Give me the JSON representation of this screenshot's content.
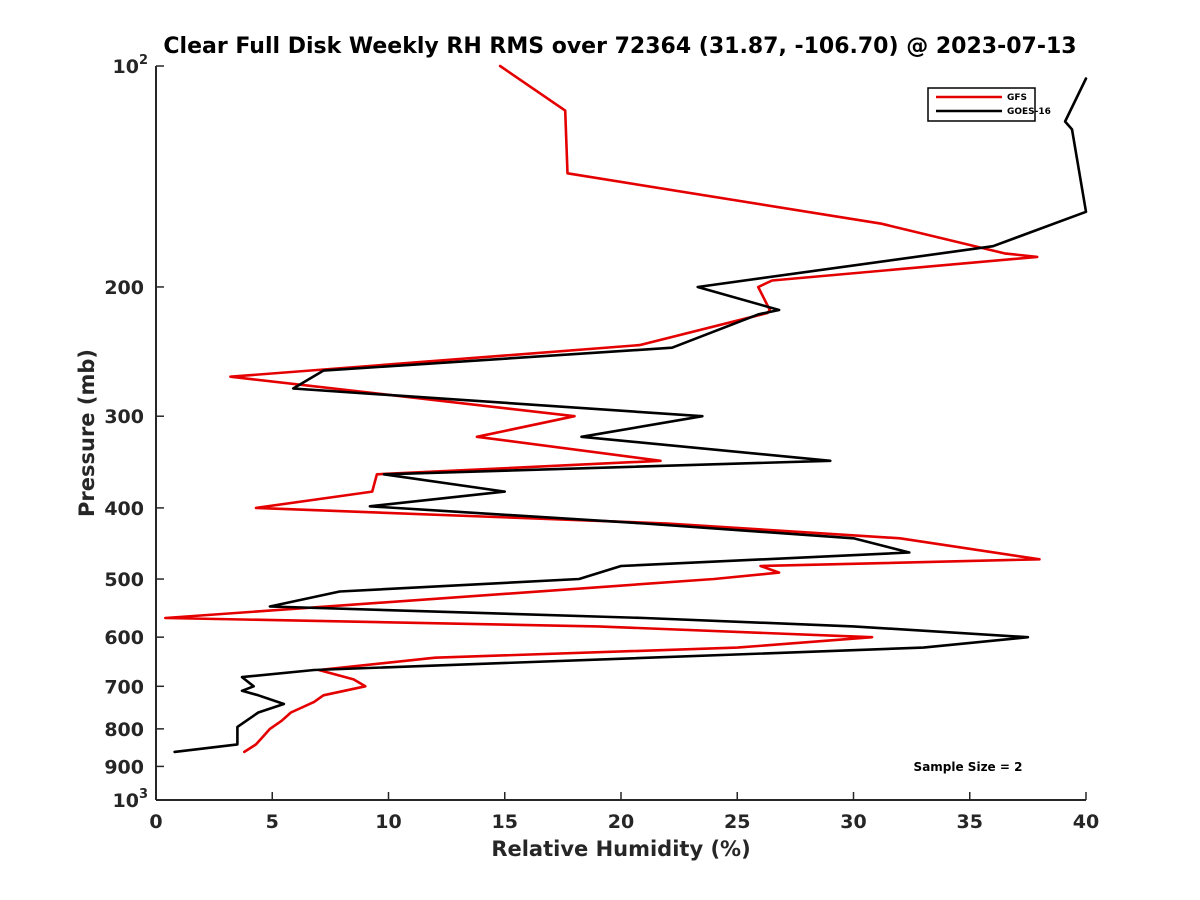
{
  "chart_data": {
    "type": "line",
    "title": "Clear Full Disk Weekly RH RMS over 72364 (31.87, -106.70) @ 2023-07-13",
    "xlabel": "Relative Humidity (%)",
    "ylabel": "Pressure (mb)",
    "xlim": [
      0,
      40
    ],
    "ylim": [
      100,
      1000
    ],
    "yscale": "log",
    "y_reversed": true,
    "grid": false,
    "legend_position": "top-right",
    "x_ticks": [
      "0",
      "5",
      "10",
      "15",
      "20",
      "25",
      "30",
      "35",
      "40"
    ],
    "x_tick_values": [
      0,
      5,
      10,
      15,
      20,
      25,
      30,
      35,
      40
    ],
    "y_ticks": [
      {
        "value": 100,
        "base": "10",
        "exp": "2"
      },
      {
        "value": 200,
        "label": "200"
      },
      {
        "value": 300,
        "label": "300"
      },
      {
        "value": 400,
        "label": "400"
      },
      {
        "value": 500,
        "label": "500"
      },
      {
        "value": 600,
        "label": "600"
      },
      {
        "value": 700,
        "label": "700"
      },
      {
        "value": 800,
        "label": "800"
      },
      {
        "value": 900,
        "label": "900"
      },
      {
        "value": 1000,
        "base": "10",
        "exp": "3"
      }
    ],
    "annotation": "Sample Size = 2",
    "series": [
      {
        "name": "GFS",
        "color": "#e50000",
        "points": [
          [
            14.8,
            100
          ],
          [
            17.6,
            115
          ],
          [
            17.7,
            140
          ],
          [
            31.2,
            164
          ],
          [
            36.5,
            180
          ],
          [
            37.9,
            182
          ],
          [
            26.5,
            196
          ],
          [
            25.9,
            200
          ],
          [
            26.4,
            215
          ],
          [
            26.3,
            217
          ],
          [
            20.8,
            240
          ],
          [
            3.2,
            265
          ],
          [
            18.0,
            300
          ],
          [
            13.8,
            320
          ],
          [
            21.7,
            345
          ],
          [
            9.5,
            360
          ],
          [
            9.3,
            380
          ],
          [
            4.3,
            400
          ],
          [
            22.0,
            420
          ],
          [
            32.0,
            440
          ],
          [
            38.0,
            470
          ],
          [
            26.0,
            480
          ],
          [
            26.8,
            490
          ],
          [
            24.0,
            500
          ],
          [
            0.4,
            565
          ],
          [
            19.0,
            580
          ],
          [
            30.8,
            600
          ],
          [
            25.0,
            620
          ],
          [
            12.0,
            640
          ],
          [
            7.0,
            665
          ],
          [
            8.5,
            685
          ],
          [
            9.0,
            700
          ],
          [
            7.2,
            720
          ],
          [
            6.8,
            735
          ],
          [
            5.8,
            760
          ],
          [
            5.4,
            780
          ],
          [
            4.9,
            800
          ],
          [
            4.6,
            820
          ],
          [
            4.3,
            840
          ],
          [
            3.8,
            860
          ]
        ]
      },
      {
        "name": "GOES-16",
        "color": "#000000",
        "points": [
          [
            40.0,
            104
          ],
          [
            39.1,
            119
          ],
          [
            39.4,
            122
          ],
          [
            40.0,
            158
          ],
          [
            36.0,
            176
          ],
          [
            23.3,
            200
          ],
          [
            26.8,
            215
          ],
          [
            25.9,
            218
          ],
          [
            22.2,
            242
          ],
          [
            7.2,
            260
          ],
          [
            5.9,
            275
          ],
          [
            23.5,
            300
          ],
          [
            18.3,
            320
          ],
          [
            29.0,
            345
          ],
          [
            9.8,
            360
          ],
          [
            15.0,
            380
          ],
          [
            9.2,
            398
          ],
          [
            21.0,
            420
          ],
          [
            30.0,
            440
          ],
          [
            32.4,
            460
          ],
          [
            20.0,
            480
          ],
          [
            18.2,
            500
          ],
          [
            7.9,
            520
          ],
          [
            4.9,
            545
          ],
          [
            21.0,
            565
          ],
          [
            30.0,
            580
          ],
          [
            37.5,
            600
          ],
          [
            33.0,
            620
          ],
          [
            6.8,
            665
          ],
          [
            3.7,
            680
          ],
          [
            4.2,
            700
          ],
          [
            3.7,
            710
          ],
          [
            4.4,
            720
          ],
          [
            5.5,
            740
          ],
          [
            4.4,
            760
          ],
          [
            3.5,
            795
          ],
          [
            3.5,
            840
          ],
          [
            0.8,
            860
          ]
        ]
      }
    ]
  }
}
